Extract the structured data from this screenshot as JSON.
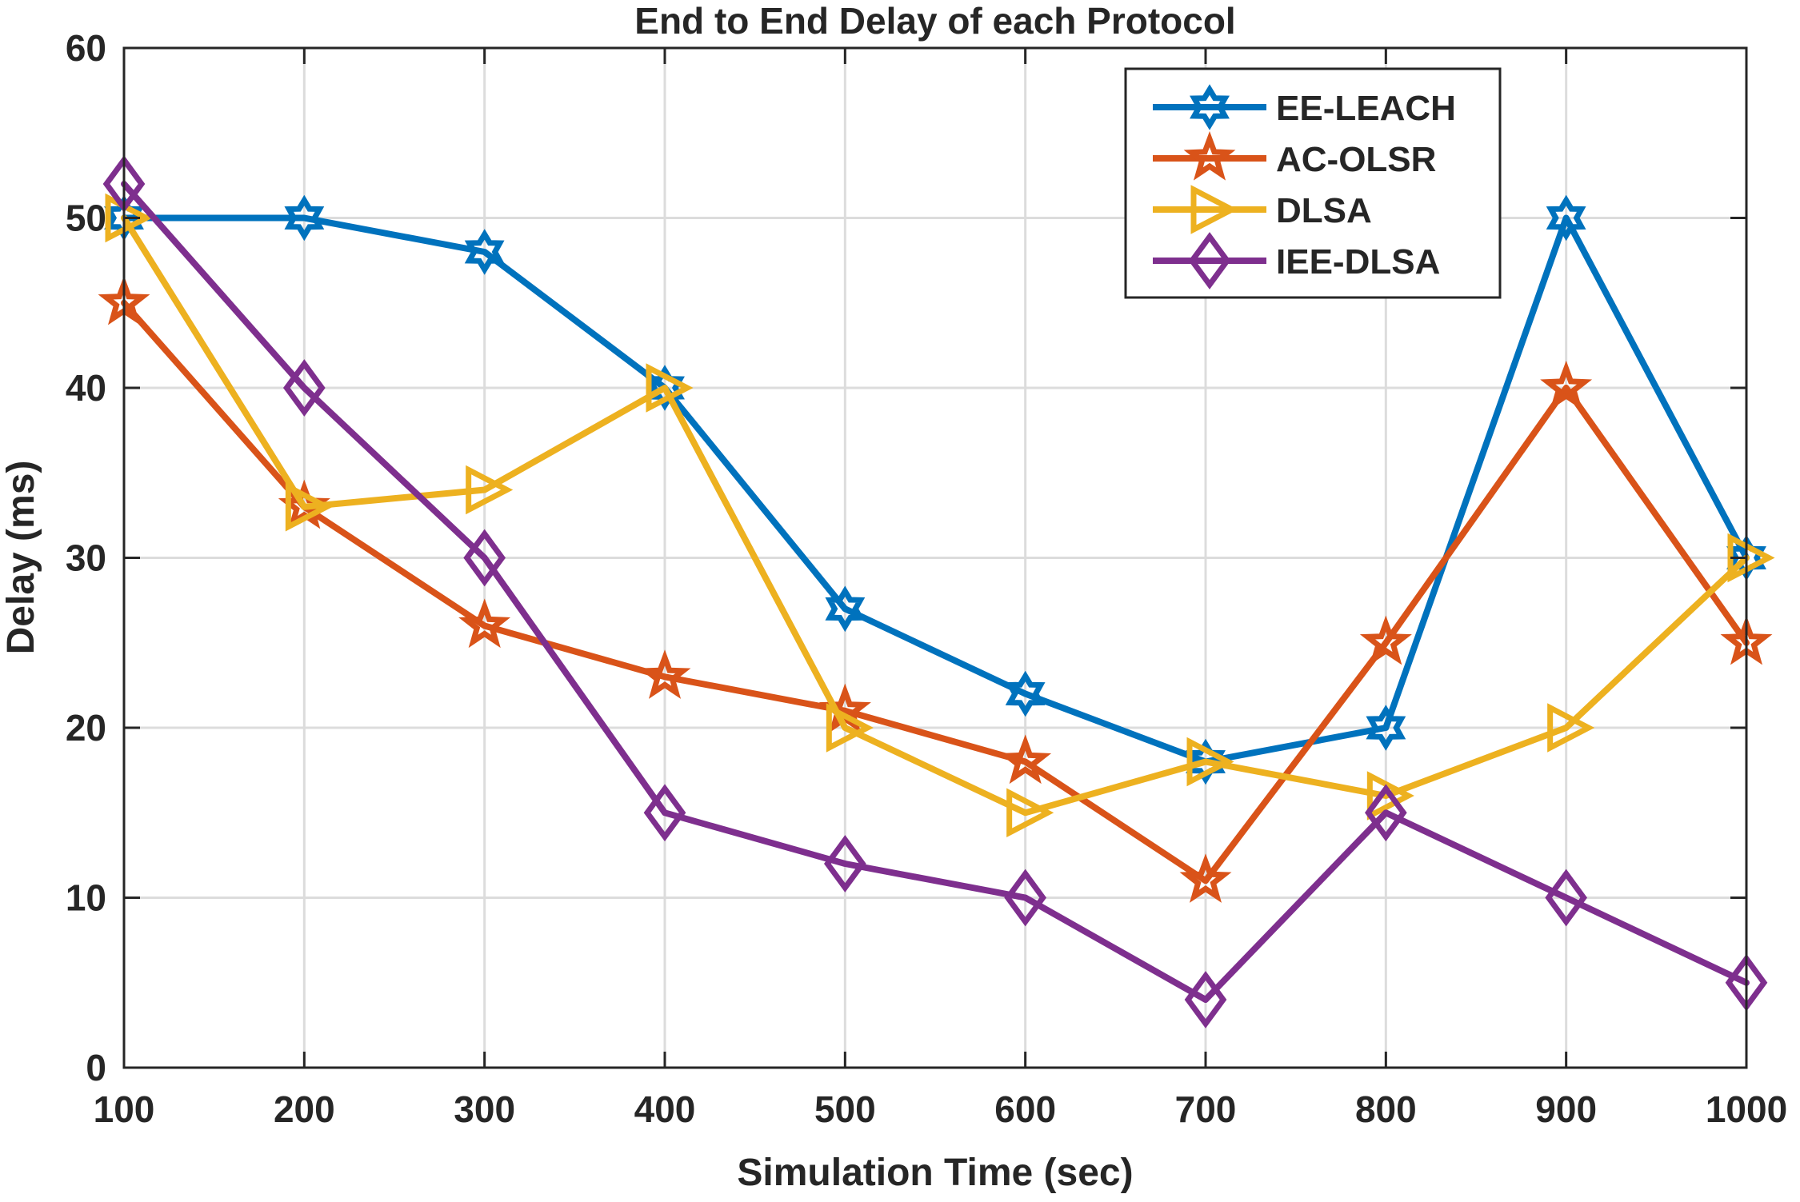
{
  "chart_data": {
    "type": "line",
    "title": "End to End Delay of each Protocol",
    "xlabel": "Simulation Time (sec)",
    "ylabel": "Delay (ms)",
    "x": [
      100,
      200,
      300,
      400,
      500,
      600,
      700,
      800,
      900,
      1000
    ],
    "xlim": [
      100,
      1000
    ],
    "ylim": [
      0,
      60
    ],
    "xticks": [
      "100",
      "200",
      "300",
      "400",
      "500",
      "600",
      "700",
      "800",
      "900",
      "1000"
    ],
    "yticks": [
      "0",
      "10",
      "20",
      "30",
      "40",
      "50",
      "60"
    ],
    "grid": true,
    "legend_position": "top-right",
    "series": [
      {
        "name": "EE-LEACH",
        "color": "#0072BD",
        "marker": "hexagram",
        "values": [
          50,
          50,
          48,
          40,
          27,
          22,
          18,
          20,
          50,
          30
        ]
      },
      {
        "name": "AC-OLSR",
        "color": "#D95319",
        "marker": "pentagram",
        "values": [
          45,
          33,
          26,
          23,
          21,
          18,
          11,
          25,
          40,
          25
        ]
      },
      {
        "name": "DLSA",
        "color": "#EDB120",
        "marker": "triangle-right",
        "values": [
          50,
          33,
          34,
          40,
          20,
          15,
          18,
          16,
          20,
          30
        ]
      },
      {
        "name": "IEE-DLSA",
        "color": "#7E2F8E",
        "marker": "diamond",
        "values": [
          52,
          40,
          30,
          15,
          12,
          10,
          4,
          15,
          10,
          5
        ]
      }
    ]
  }
}
